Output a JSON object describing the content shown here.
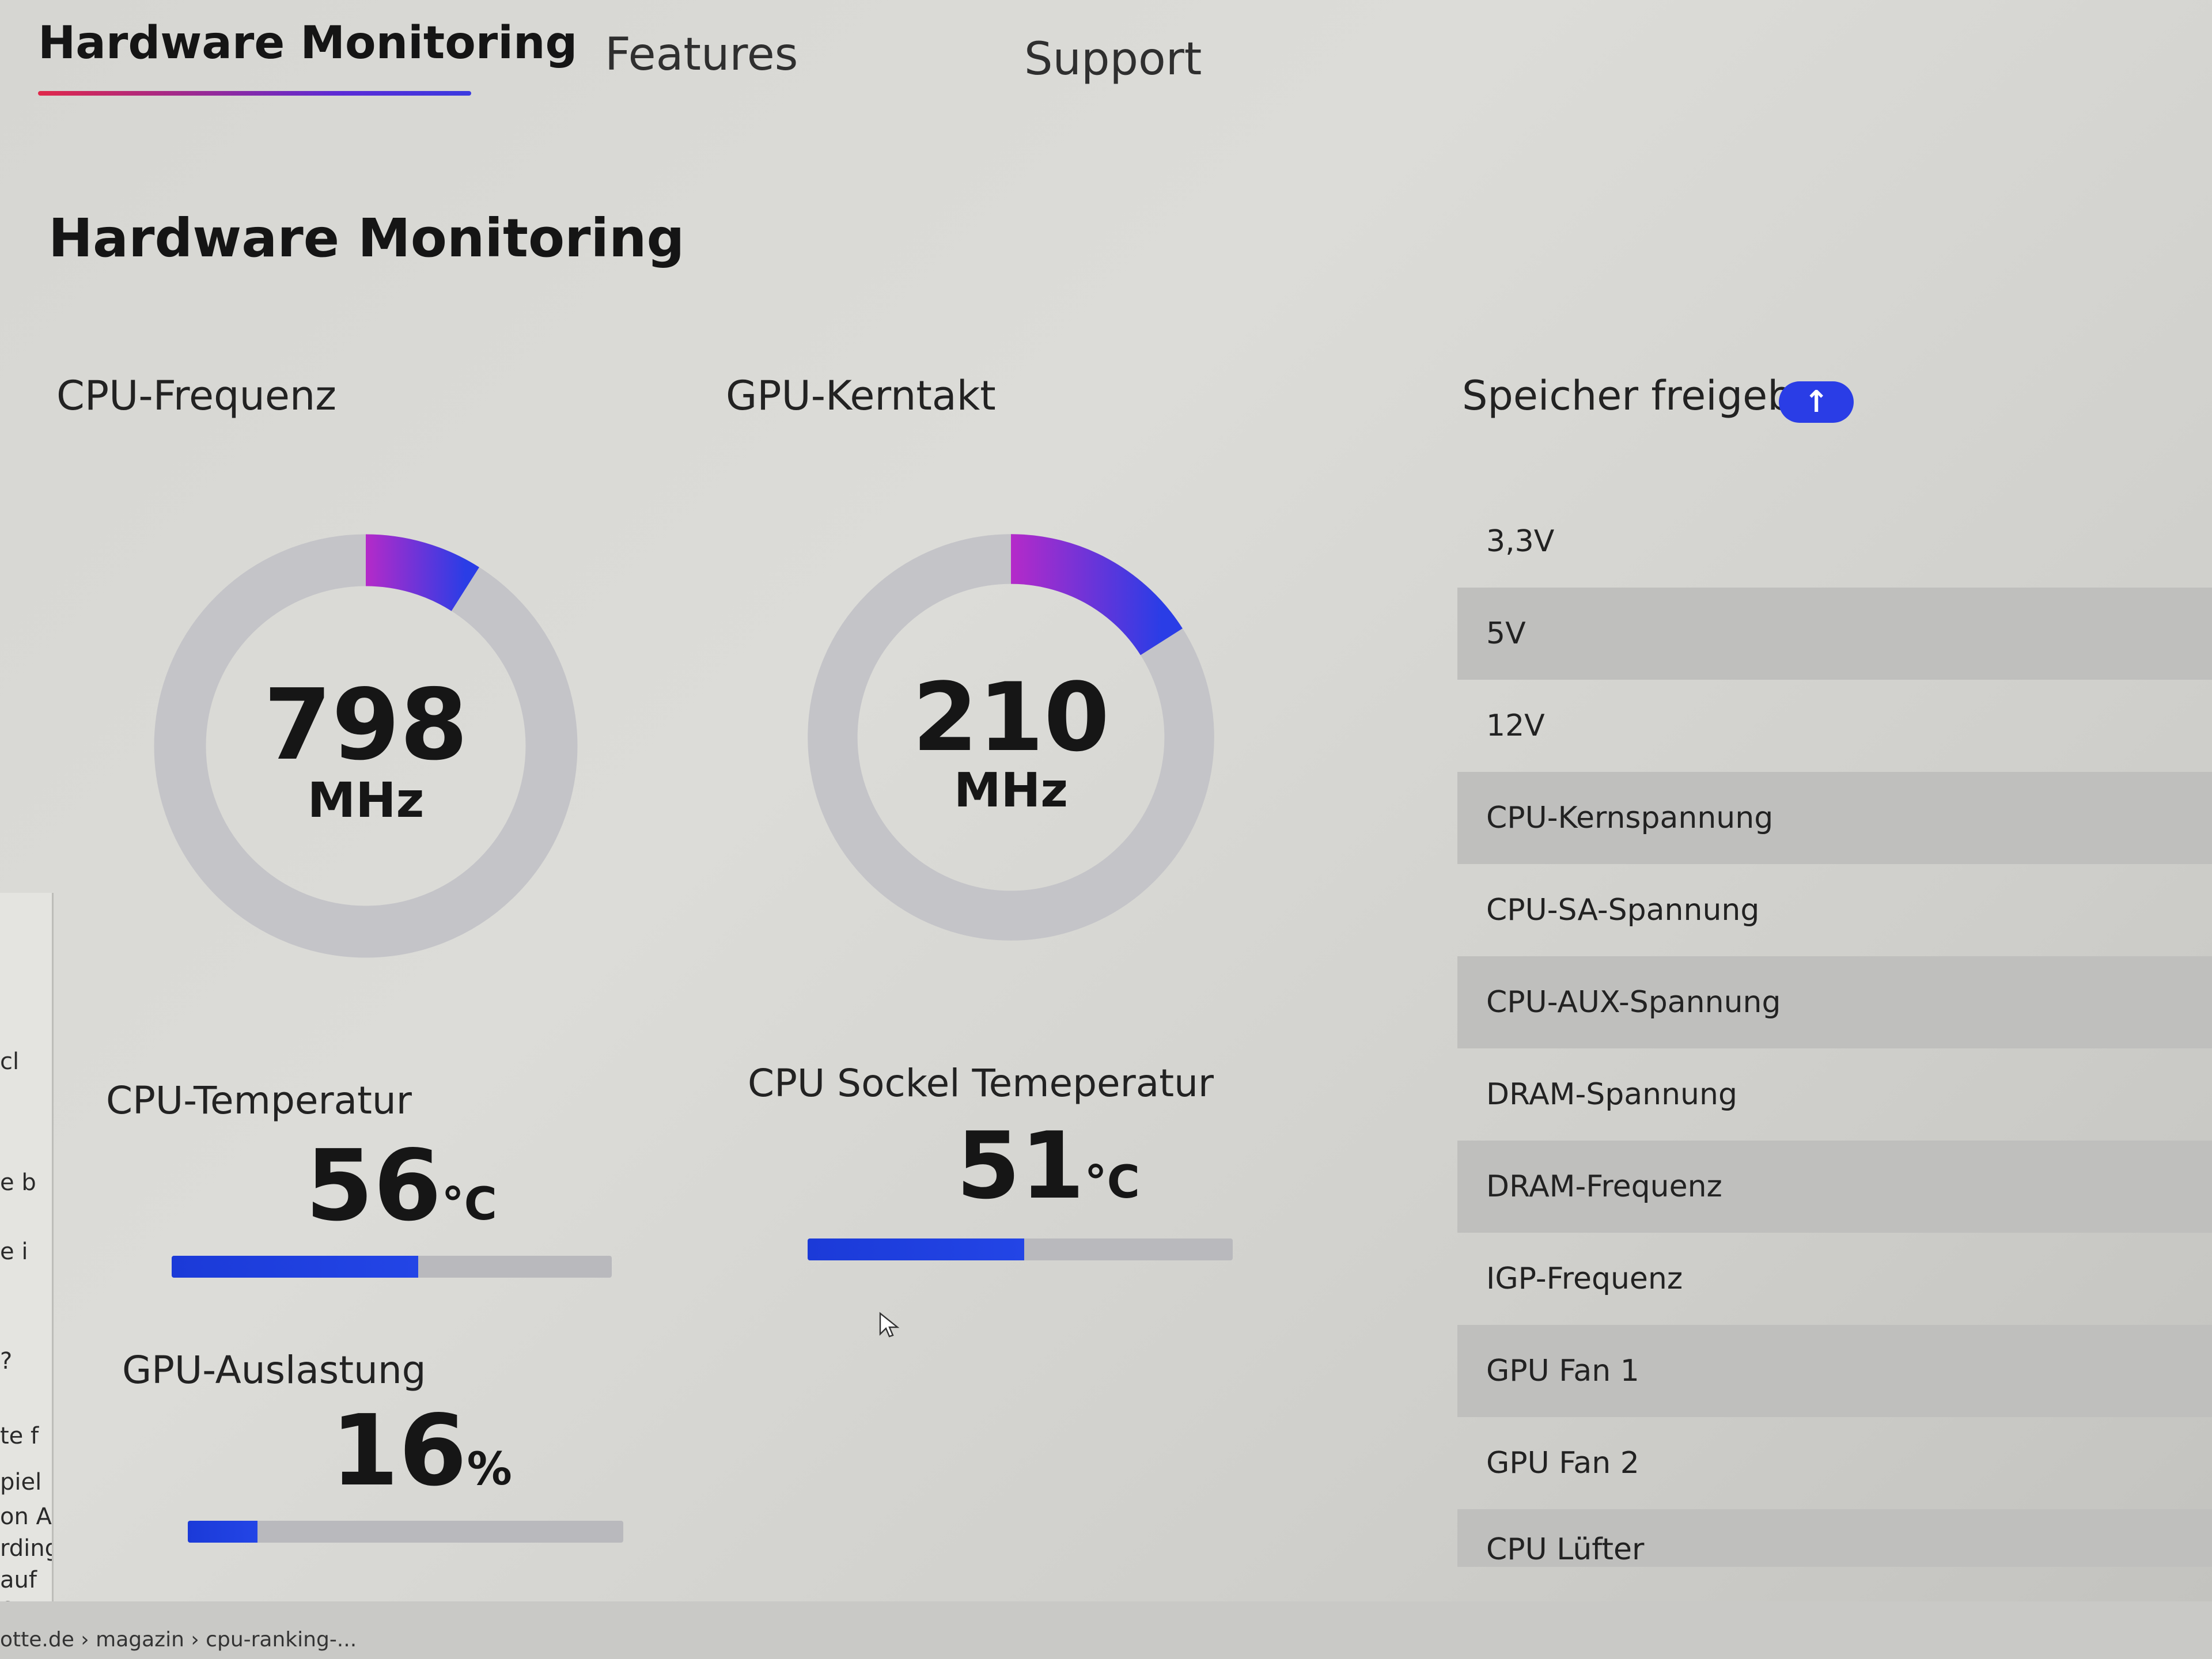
{
  "nav": {
    "tabs": [
      {
        "label": "Hardware Monitoring",
        "active": true
      },
      {
        "label": "Features",
        "active": false
      },
      {
        "label": "Support",
        "active": false
      }
    ]
  },
  "page": {
    "title": "Hardware Monitoring"
  },
  "gauges": {
    "cpu_freq": {
      "label": "CPU-Frequenz",
      "value": "798",
      "unit": "MHz",
      "fill_fraction": 0.09
    },
    "gpu_clock": {
      "label": "GPU-Kerntakt",
      "value": "210",
      "unit": "MHz",
      "fill_fraction": 0.16
    }
  },
  "stats": {
    "cpu_temp": {
      "label": "CPU-Temperatur",
      "value": "56",
      "unit": "°C",
      "percent": 56
    },
    "socket_temp": {
      "label": "CPU Sockel Temeperatur",
      "value": "51",
      "unit": "°C",
      "percent": 51
    },
    "gpu_load": {
      "label": "GPU-Auslastung",
      "value": "16",
      "unit": "%",
      "percent": 16
    }
  },
  "voltages": {
    "header": "Speicher freigeben",
    "button_icon": "arrow-up-icon",
    "items": [
      "3,3V",
      "5V",
      "12V",
      "CPU-Kernspannung",
      "CPU-SA-Spannung",
      "CPU-AUX-Spannung",
      "DRAM-Spannung",
      "DRAM-Frequenz",
      "IGP-Frequenz",
      "GPU Fan 1",
      "GPU Fan 2",
      "CPU Lüfter"
    ]
  },
  "background": {
    "edge_text": [
      "cl",
      "e b",
      "e i",
      "?",
      "te f",
      "piel",
      "on A",
      "rding",
      "auf c"
    ],
    "url": "otte.de › magazin › cpu-ranking-..."
  },
  "colors": {
    "accent": "#2a3de6",
    "gauge_start": "#b52ac9",
    "gauge_end": "#2a3de6",
    "track": "#c4c4c8"
  }
}
